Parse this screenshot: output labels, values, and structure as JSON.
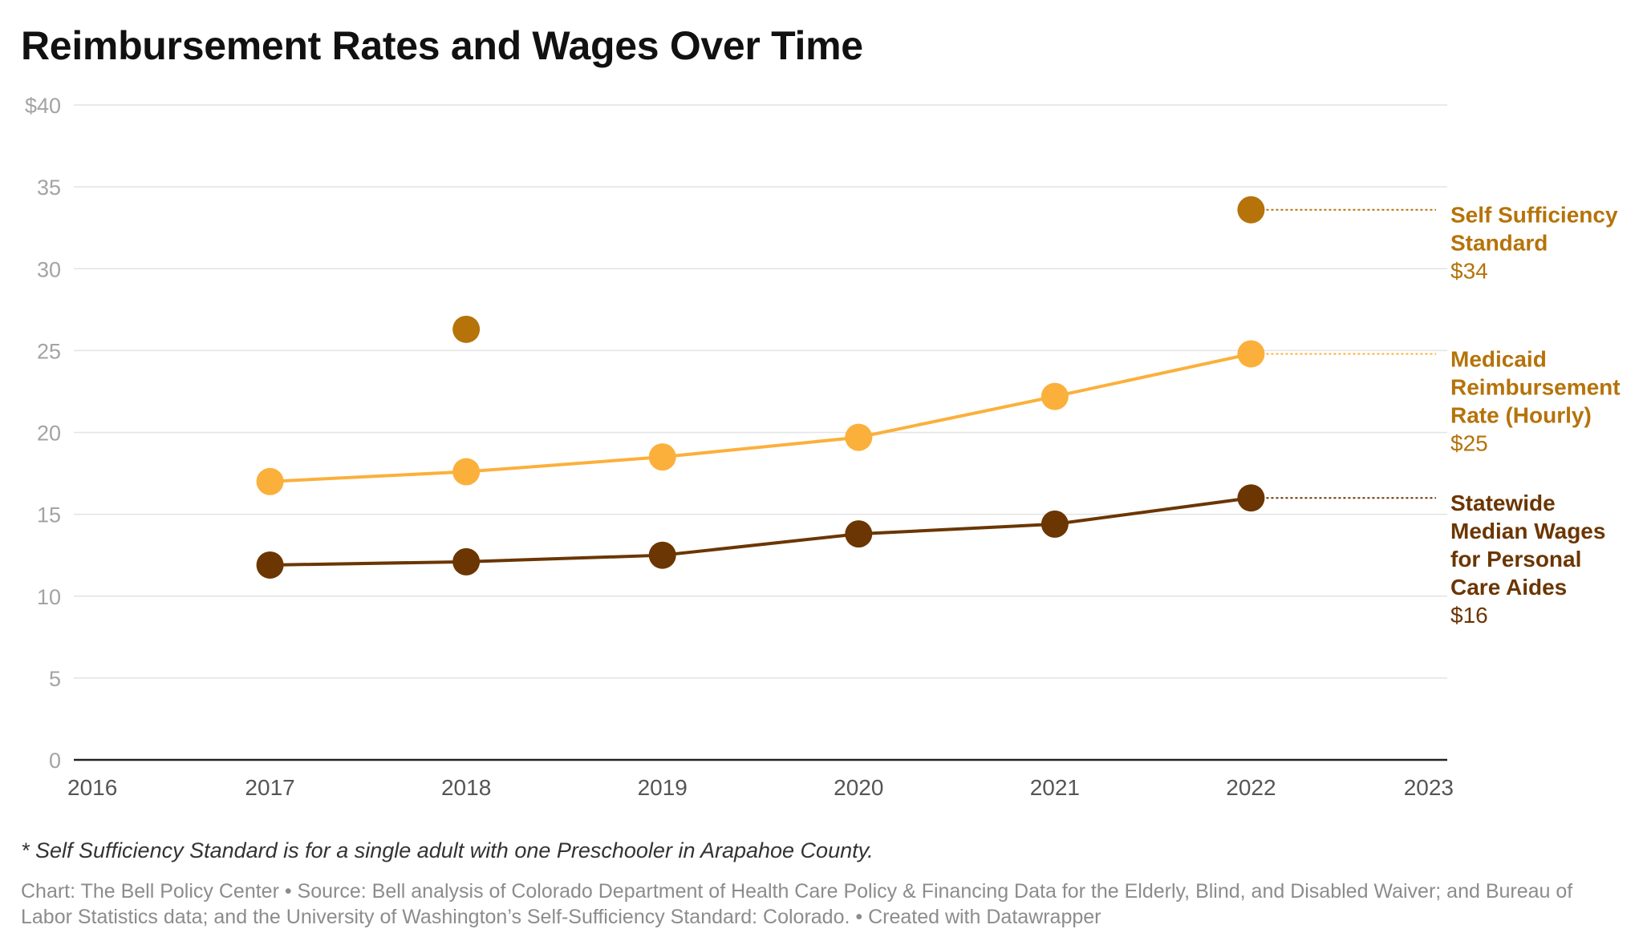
{
  "title": "Reimbursement Rates and Wages Over Time",
  "footnote": "* Self Sufficiency Standard is for a single adult with one Preschooler in Arapahoe County.",
  "credit": "Chart: The Bell Policy Center • Source: Bell analysis of Colorado Department of Health Care Policy & Financing Data for the Elderly, Blind, and Disabled Waiver; and Bureau of Labor Statistics data; and the University of Washington’s Self-Sufficiency Standard: Colorado.  • Created with Datawrapper",
  "chart_data": {
    "type": "line",
    "title": "Reimbursement Rates and Wages Over Time",
    "xlabel": "",
    "ylabel": "",
    "xlim": [
      2016,
      2023
    ],
    "ylim": [
      0,
      40
    ],
    "grid": true,
    "legend": "direct labels at right",
    "x_ticks": [
      "2016",
      "2017",
      "2018",
      "2019",
      "2020",
      "2021",
      "2022",
      "2023"
    ],
    "y_ticks": [
      "0",
      "5",
      "10",
      "15",
      "20",
      "25",
      "30",
      "35",
      "$40"
    ],
    "series": [
      {
        "name_lines": [
          "Self Sufficiency",
          "Standard"
        ],
        "end_label": "$34",
        "color": "#b5730a",
        "line": false,
        "points": [
          [
            2018,
            26.3
          ],
          [
            2022,
            33.6
          ]
        ]
      },
      {
        "name_lines": [
          "Medicaid",
          "Reimbursement",
          "Rate (Hourly)"
        ],
        "end_label": "$25",
        "color": "#fbb03b",
        "label_color": "#b5730a",
        "line": true,
        "points": [
          [
            2017,
            17.0
          ],
          [
            2018,
            17.6
          ],
          [
            2019,
            18.5
          ],
          [
            2020,
            19.7
          ],
          [
            2021,
            22.2
          ],
          [
            2022,
            24.8
          ]
        ]
      },
      {
        "name_lines": [
          "Statewide",
          "Median Wages",
          "for Personal",
          "Care Aides"
        ],
        "end_label": "$16",
        "color": "#6b3602",
        "line": true,
        "points": [
          [
            2017,
            11.9
          ],
          [
            2018,
            12.1
          ],
          [
            2019,
            12.5
          ],
          [
            2020,
            13.8
          ],
          [
            2021,
            14.4
          ],
          [
            2022,
            16.0
          ]
        ]
      }
    ]
  }
}
